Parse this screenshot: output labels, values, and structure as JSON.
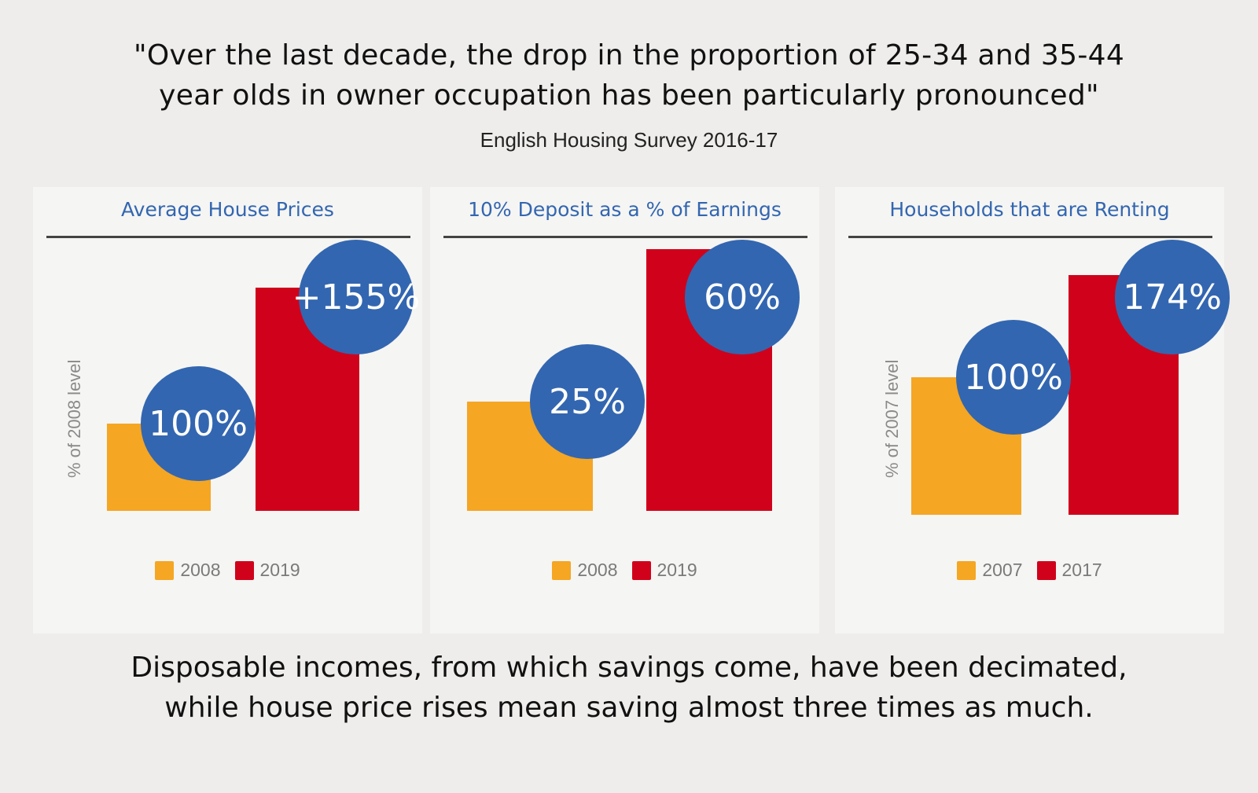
{
  "quote": {
    "line1": "\"Over the last decade, the drop in the proportion of 25-34 and 35-44",
    "line2": "year olds in owner occupation has been particularly pronounced\"",
    "source": "English Housing Survey 2016-17"
  },
  "footer": {
    "line1": "Disposable incomes, from which savings come, have been decimated,",
    "line2": "while house price rises mean saving almost three times as much."
  },
  "colors": {
    "before": "#f5a623",
    "after": "#d0021b",
    "bubble": "#3366b0",
    "title": "#3366b0"
  },
  "chart_data": [
    {
      "type": "bar",
      "title": "Average House Prices",
      "ylabel": "% of 2008 level",
      "categories": [
        "2008",
        "2019"
      ],
      "values": [
        100,
        255
      ],
      "labels": [
        "100%",
        "+155%"
      ],
      "legend": [
        "2008",
        "2019"
      ],
      "legend_position": "bottom",
      "ylim": [
        0,
        255
      ]
    },
    {
      "type": "bar",
      "title": "10% Deposit as a % of Earnings",
      "ylabel": "",
      "categories": [
        "2008",
        "2019"
      ],
      "values": [
        25,
        60
      ],
      "labels": [
        "25%",
        "60%"
      ],
      "legend": [
        "2008",
        "2019"
      ],
      "legend_position": "bottom",
      "ylim": [
        0,
        60
      ]
    },
    {
      "type": "bar",
      "title": "Households that are Renting",
      "ylabel": "% of 2007 level",
      "categories": [
        "2007",
        "2017"
      ],
      "values": [
        100,
        174
      ],
      "labels": [
        "100%",
        "174%"
      ],
      "legend": [
        "2007",
        "2017"
      ],
      "legend_position": "bottom",
      "ylim": [
        0,
        174
      ]
    }
  ]
}
